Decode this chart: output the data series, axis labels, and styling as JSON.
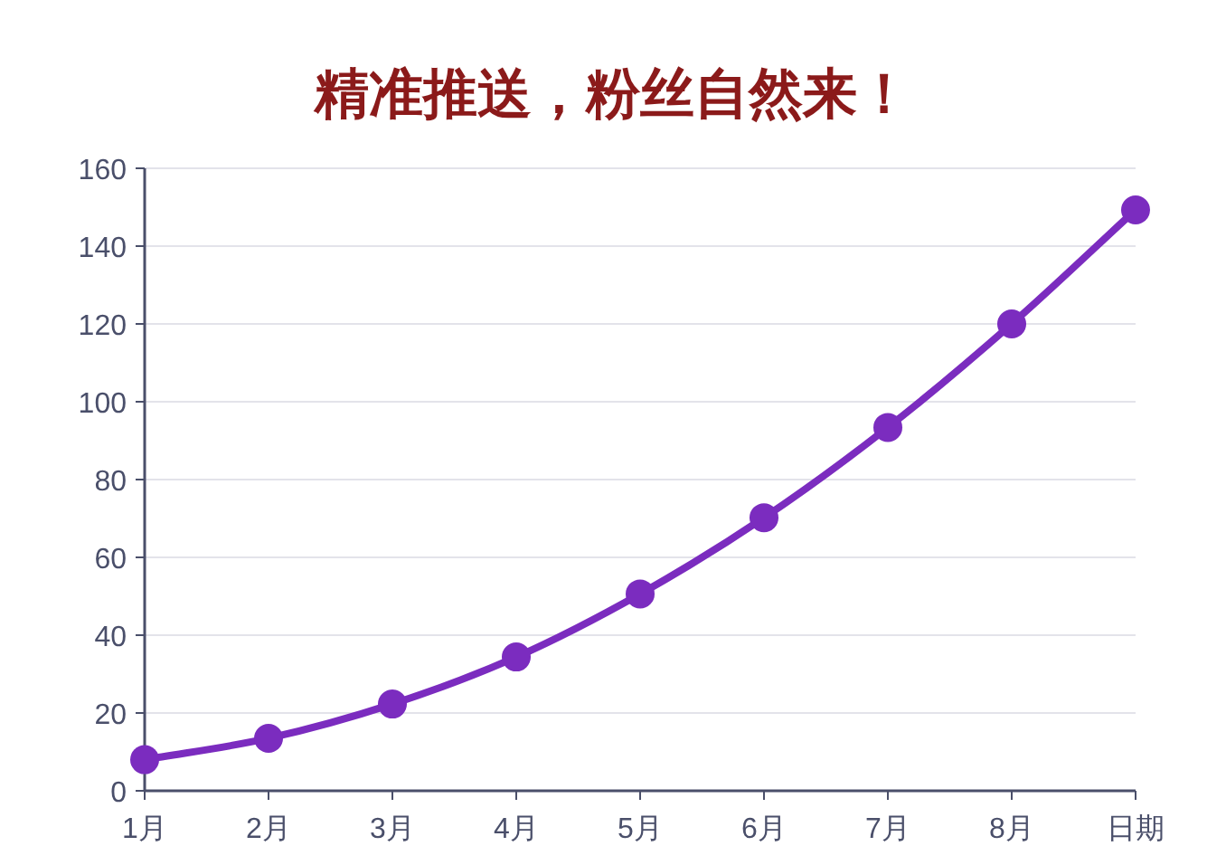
{
  "chart_data": {
    "type": "line",
    "title": "精准推送，粉丝自然来！",
    "xlabel": "日期",
    "categories": [
      "1月",
      "2月",
      "3月",
      "4月",
      "5月",
      "6月",
      "7月",
      "8月",
      null
    ],
    "series": [
      {
        "color": "#7b2cbf",
        "values": [
          8,
          13.5,
          22.3,
          34.4,
          50.6,
          70.2,
          93.4,
          120,
          149.3
        ]
      }
    ],
    "ylim": [
      0,
      160
    ],
    "yticks": [
      0,
      20,
      40,
      60,
      80,
      100,
      120,
      140,
      160
    ],
    "grid": "y",
    "marker": "circle",
    "line_style": "solid"
  }
}
